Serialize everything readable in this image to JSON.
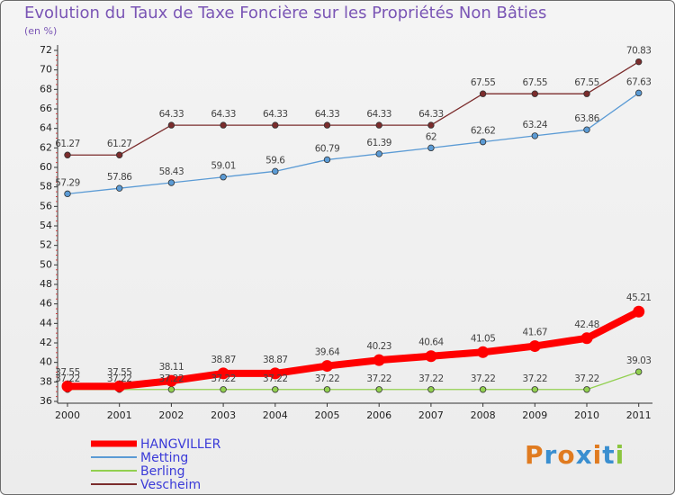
{
  "page": {
    "title": "Evolution du Taux de Taxe Foncière sur les Propriétés Non Bâties",
    "unit": "(en %)"
  },
  "logo": {
    "text": "Proxiti",
    "colors": [
      "#e07b20",
      "#3a8fd0",
      "#e07b20",
      "#3a8fd0",
      "#e07b20",
      "#3a8fd0",
      "#8bc53f"
    ]
  },
  "chart_data": {
    "type": "line",
    "title": "Evolution du Taux de Taxe Foncière sur les Propriétés Non Bâties",
    "ylabel": "(en %)",
    "xlabel": "",
    "ylim": [
      36,
      72
    ],
    "yticks": [
      36,
      38,
      40,
      42,
      44,
      46,
      48,
      50,
      52,
      54,
      56,
      58,
      60,
      62,
      64,
      66,
      68,
      70,
      72
    ],
    "x": [
      "2000",
      "2001",
      "2002",
      "2003",
      "2004",
      "2005",
      "2006",
      "2007",
      "2008",
      "2009",
      "2010",
      "2011"
    ],
    "grid": false,
    "legend": "bottom-left",
    "series": [
      {
        "name": "HANGVILLER",
        "color": "#ff0000",
        "thick": true,
        "values": [
          37.55,
          37.55,
          38.11,
          38.87,
          38.87,
          39.64,
          40.23,
          40.64,
          41.05,
          41.67,
          42.48,
          45.21
        ],
        "labels": [
          "37.55",
          "37.55",
          "38.11",
          "38.87",
          "38.87",
          "39.64",
          "40.23",
          "40.64",
          "41.05",
          "41.67",
          "42.48",
          "45.21"
        ]
      },
      {
        "name": "Metting",
        "color": "#5b9bd5",
        "thick": false,
        "values": [
          57.29,
          57.86,
          58.43,
          59.01,
          59.6,
          60.79,
          61.39,
          62,
          62.62,
          63.24,
          63.86,
          67.63
        ],
        "labels": [
          "57.29",
          "57.86",
          "58.43",
          "59.01",
          "59.6",
          "60.79",
          "61.39",
          "62",
          "62.62",
          "63.24",
          "63.86",
          "67.63"
        ]
      },
      {
        "name": "Berling",
        "color": "#92d050",
        "thick": false,
        "values": [
          37.22,
          37.22,
          37.22,
          37.22,
          37.22,
          37.22,
          37.22,
          37.22,
          37.22,
          37.22,
          37.22,
          39.03
        ],
        "labels": [
          "37.22",
          "37.22",
          "37.22",
          "37.22",
          "37.22",
          "37.22",
          "37.22",
          "37.22",
          "37.22",
          "37.22",
          "37.22",
          "39.03"
        ]
      },
      {
        "name": "Vescheim",
        "color": "#7b2c2c",
        "thick": false,
        "values": [
          61.27,
          61.27,
          64.33,
          64.33,
          64.33,
          64.33,
          64.33,
          64.33,
          67.55,
          67.55,
          67.55,
          70.83
        ],
        "labels": [
          "61.27",
          "61.27",
          "64.33",
          "64.33",
          "64.33",
          "64.33",
          "64.33",
          "64.33",
          "67.55",
          "67.55",
          "67.55",
          "70.83"
        ]
      }
    ]
  }
}
